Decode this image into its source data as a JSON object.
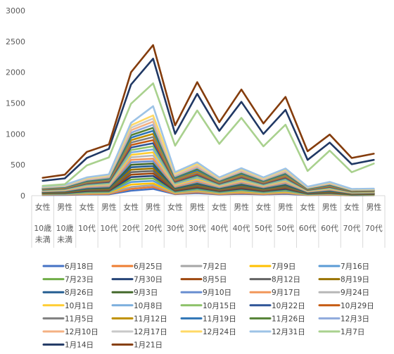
{
  "chart_data": {
    "type": "line",
    "ylim": [
      0,
      3000
    ],
    "yticks": [
      0,
      500,
      1000,
      1500,
      2000,
      2500,
      3000
    ],
    "grid": false,
    "legend_position": "bottom",
    "categories": [
      {
        "gender": "女性",
        "age": "10歳未満",
        "age_lines": [
          "10歳",
          "未満"
        ]
      },
      {
        "gender": "男性",
        "age": "10歳未満",
        "age_lines": [
          "10歳",
          "未満"
        ]
      },
      {
        "gender": "女性",
        "age": "10代",
        "age_lines": [
          "10代"
        ]
      },
      {
        "gender": "男性",
        "age": "10代",
        "age_lines": [
          "10代"
        ]
      },
      {
        "gender": "女性",
        "age": "20代",
        "age_lines": [
          "20代"
        ]
      },
      {
        "gender": "男性",
        "age": "20代",
        "age_lines": [
          "20代"
        ]
      },
      {
        "gender": "女性",
        "age": "30代",
        "age_lines": [
          "30代"
        ]
      },
      {
        "gender": "男性",
        "age": "30代",
        "age_lines": [
          "30代"
        ]
      },
      {
        "gender": "女性",
        "age": "40代",
        "age_lines": [
          "40代"
        ]
      },
      {
        "gender": "男性",
        "age": "40代",
        "age_lines": [
          "40代"
        ]
      },
      {
        "gender": "女性",
        "age": "50代",
        "age_lines": [
          "50代"
        ]
      },
      {
        "gender": "男性",
        "age": "50代",
        "age_lines": [
          "50代"
        ]
      },
      {
        "gender": "女性",
        "age": "60代",
        "age_lines": [
          "60代"
        ]
      },
      {
        "gender": "男性",
        "age": "60代",
        "age_lines": [
          "60代"
        ]
      },
      {
        "gender": "女性",
        "age": "70代",
        "age_lines": [
          "70代"
        ]
      },
      {
        "gender": "男性",
        "age": "70代",
        "age_lines": [
          "70代"
        ]
      }
    ],
    "series": [
      {
        "name": "6月18日",
        "color": "#4472C4",
        "values": [
          10,
          12,
          20,
          22,
          80,
          110,
          25,
          40,
          20,
          30,
          20,
          30,
          10,
          15,
          5,
          8
        ]
      },
      {
        "name": "6月25日",
        "color": "#ED7D31",
        "values": [
          15,
          18,
          25,
          30,
          110,
          140,
          30,
          55,
          25,
          40,
          25,
          40,
          12,
          18,
          8,
          10
        ]
      },
      {
        "name": "7月2日",
        "color": "#A5A5A5",
        "values": [
          20,
          22,
          35,
          40,
          140,
          170,
          40,
          70,
          35,
          55,
          35,
          50,
          15,
          25,
          10,
          12
        ]
      },
      {
        "name": "7月9日",
        "color": "#FFC000",
        "values": [
          25,
          28,
          45,
          50,
          180,
          200,
          50,
          85,
          45,
          70,
          45,
          65,
          20,
          30,
          12,
          15
        ]
      },
      {
        "name": "7月16日",
        "color": "#5B9BD5",
        "values": [
          30,
          32,
          55,
          60,
          220,
          240,
          60,
          100,
          55,
          85,
          55,
          80,
          25,
          35,
          15,
          18
        ]
      },
      {
        "name": "7月23日",
        "color": "#70AD47",
        "values": [
          35,
          38,
          65,
          70,
          260,
          280,
          70,
          115,
          65,
          100,
          65,
          95,
          30,
          42,
          18,
          22
        ]
      },
      {
        "name": "7月30日",
        "color": "#264478",
        "values": [
          40,
          44,
          75,
          80,
          300,
          320,
          80,
          130,
          75,
          115,
          75,
          110,
          35,
          48,
          22,
          26
        ]
      },
      {
        "name": "8月5日",
        "color": "#9E480E",
        "values": [
          45,
          50,
          85,
          90,
          340,
          360,
          90,
          145,
          85,
          130,
          85,
          125,
          40,
          55,
          25,
          30
        ]
      },
      {
        "name": "8月12日",
        "color": "#636363",
        "values": [
          50,
          56,
          95,
          100,
          380,
          400,
          100,
          160,
          95,
          145,
          95,
          140,
          45,
          62,
          28,
          34
        ]
      },
      {
        "name": "8月19日",
        "color": "#997300",
        "values": [
          55,
          62,
          105,
          112,
          420,
          440,
          110,
          175,
          105,
          160,
          105,
          155,
          50,
          70,
          32,
          38
        ]
      },
      {
        "name": "8月26日",
        "color": "#255E91",
        "values": [
          60,
          68,
          115,
          125,
          460,
          480,
          120,
          190,
          115,
          175,
          115,
          170,
          55,
          78,
          36,
          42
        ]
      },
      {
        "name": "9月3日",
        "color": "#43682B",
        "values": [
          65,
          74,
          125,
          138,
          500,
          520,
          130,
          205,
          125,
          190,
          125,
          185,
          60,
          86,
          40,
          46
        ]
      },
      {
        "name": "9月10日",
        "color": "#698ED0",
        "values": [
          70,
          80,
          135,
          150,
          540,
          560,
          140,
          220,
          135,
          205,
          135,
          200,
          65,
          94,
          44,
          50
        ]
      },
      {
        "name": "9月17日",
        "color": "#F1975A",
        "values": [
          75,
          86,
          145,
          162,
          580,
          600,
          150,
          235,
          145,
          220,
          145,
          215,
          70,
          102,
          48,
          54
        ]
      },
      {
        "name": "9月24日",
        "color": "#B7B7B7",
        "values": [
          80,
          92,
          155,
          175,
          620,
          650,
          165,
          255,
          155,
          235,
          155,
          230,
          75,
          110,
          52,
          58
        ]
      },
      {
        "name": "10月1日",
        "color": "#FFCD33",
        "values": [
          85,
          98,
          165,
          188,
          660,
          700,
          180,
          275,
          165,
          250,
          165,
          245,
          80,
          118,
          56,
          62
        ]
      },
      {
        "name": "10月8日",
        "color": "#7CAFDD",
        "values": [
          90,
          104,
          175,
          200,
          700,
          750,
          195,
          295,
          175,
          265,
          175,
          260,
          85,
          126,
          60,
          66
        ]
      },
      {
        "name": "10月15日",
        "color": "#8CC168",
        "values": [
          95,
          110,
          185,
          212,
          740,
          800,
          210,
          315,
          185,
          280,
          185,
          275,
          90,
          134,
          64,
          70
        ]
      },
      {
        "name": "10月22日",
        "color": "#2F5597",
        "values": [
          100,
          116,
          195,
          224,
          780,
          850,
          225,
          335,
          195,
          295,
          195,
          290,
          95,
          142,
          68,
          74
        ]
      },
      {
        "name": "10月29日",
        "color": "#C55A11",
        "values": [
          105,
          122,
          205,
          236,
          820,
          900,
          240,
          355,
          205,
          310,
          205,
          305,
          100,
          150,
          72,
          78
        ]
      },
      {
        "name": "11月5日",
        "color": "#7F7F7F",
        "values": [
          110,
          128,
          215,
          248,
          860,
          950,
          255,
          375,
          215,
          325,
          215,
          320,
          105,
          158,
          76,
          82
        ]
      },
      {
        "name": "11月12日",
        "color": "#BF9000",
        "values": [
          115,
          134,
          225,
          260,
          900,
          1000,
          270,
          395,
          225,
          340,
          225,
          335,
          110,
          166,
          80,
          86
        ]
      },
      {
        "name": "11月19日",
        "color": "#2E75B6",
        "values": [
          120,
          140,
          235,
          272,
          940,
          1050,
          285,
          415,
          235,
          355,
          235,
          350,
          115,
          174,
          84,
          90
        ]
      },
      {
        "name": "11月26日",
        "color": "#548235",
        "values": [
          125,
          146,
          245,
          284,
          980,
          1100,
          300,
          435,
          245,
          370,
          245,
          365,
          120,
          182,
          88,
          94
        ]
      },
      {
        "name": "12月3日",
        "color": "#8FAADC",
        "values": [
          130,
          152,
          255,
          296,
          1020,
          1150,
          315,
          455,
          255,
          385,
          255,
          380,
          125,
          190,
          92,
          98
        ]
      },
      {
        "name": "12月10日",
        "color": "#F4B183",
        "values": [
          135,
          158,
          265,
          308,
          1060,
          1200,
          330,
          475,
          265,
          400,
          265,
          395,
          130,
          198,
          96,
          102
        ]
      },
      {
        "name": "12月17日",
        "color": "#C9C9C9",
        "values": [
          140,
          164,
          275,
          320,
          1100,
          1250,
          345,
          495,
          275,
          415,
          275,
          410,
          135,
          206,
          100,
          106
        ]
      },
      {
        "name": "12月24日",
        "color": "#FFD966",
        "values": [
          145,
          170,
          285,
          332,
          1140,
          1300,
          360,
          515,
          285,
          430,
          285,
          425,
          140,
          214,
          104,
          110
        ]
      },
      {
        "name": "12月31日",
        "color": "#9DC3E6",
        "values": [
          150,
          176,
          295,
          344,
          1180,
          1450,
          380,
          540,
          295,
          445,
          295,
          440,
          145,
          222,
          108,
          114
        ]
      },
      {
        "name": "1月7日",
        "color": "#A9D18E",
        "values": [
          160,
          185,
          490,
          620,
          1490,
          1820,
          810,
          1380,
          840,
          1260,
          800,
          1150,
          400,
          730,
          380,
          520
        ]
      },
      {
        "name": "1月14日",
        "color": "#203864",
        "values": [
          240,
          280,
          610,
          760,
          1800,
          2220,
          1000,
          1650,
          1050,
          1520,
          1000,
          1390,
          580,
          860,
          510,
          580
        ]
      },
      {
        "name": "1月21日",
        "color": "#843C0C",
        "values": [
          290,
          340,
          710,
          830,
          2000,
          2440,
          1140,
          1840,
          1190,
          1720,
          1170,
          1600,
          720,
          990,
          610,
          680
        ]
      }
    ]
  }
}
